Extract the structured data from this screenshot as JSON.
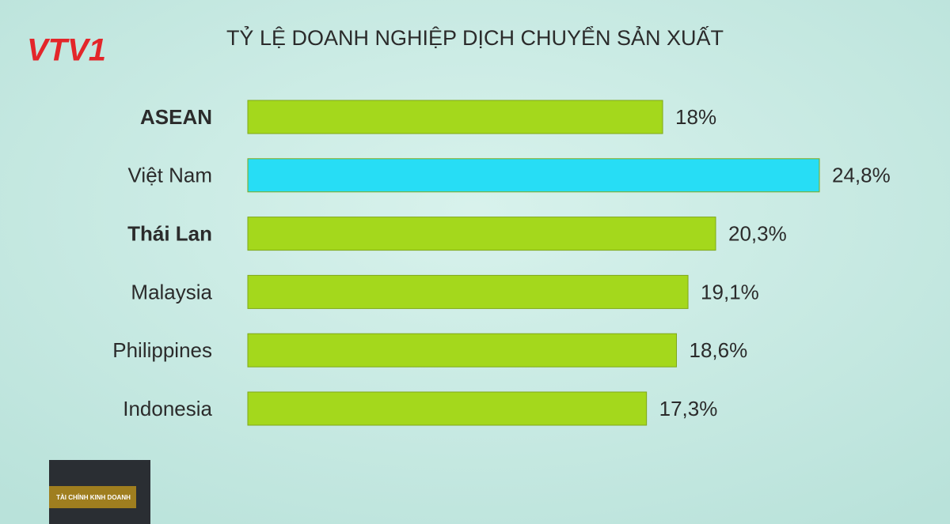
{
  "logo": "VTV1",
  "program": "TÀI CHÍNH KINH DOANH",
  "chart_data": {
    "type": "bar",
    "orientation": "horizontal",
    "title": "TỶ LỆ DOANH NGHIỆP DỊCH CHUYỂN SẢN XUẤT",
    "categories": [
      "ASEAN",
      "Việt Nam",
      "Thái Lan",
      "Malaysia",
      "Philippines",
      "Indonesia"
    ],
    "values": [
      18,
      24.8,
      20.3,
      19.1,
      18.6,
      17.3
    ],
    "value_labels": [
      "18%",
      "24,8%",
      "20,3%",
      "19,1%",
      "18,6%",
      "17,3%"
    ],
    "colors": [
      "#a4d81c",
      "#27ddf5",
      "#a4d81c",
      "#a4d81c",
      "#a4d81c",
      "#a4d81c"
    ],
    "bold": [
      true,
      false,
      true,
      false,
      false,
      false
    ]
  }
}
